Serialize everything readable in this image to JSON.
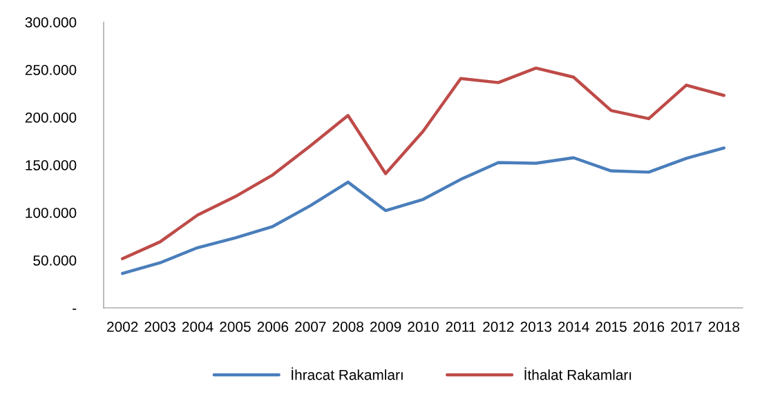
{
  "chart_data": {
    "type": "line",
    "categories": [
      "2002",
      "2003",
      "2004",
      "2005",
      "2006",
      "2007",
      "2008",
      "2009",
      "2010",
      "2011",
      "2012",
      "2013",
      "2014",
      "2015",
      "2016",
      "2017",
      "2018"
    ],
    "series": [
      {
        "name": "İhracat Rakamları",
        "color": "#4a7ebb",
        "values": [
          36100,
          47300,
          63200,
          73500,
          85500,
          107300,
          132000,
          102100,
          113900,
          134900,
          152500,
          151800,
          157600,
          143800,
          142500,
          157000,
          167900
        ]
      },
      {
        "name": "İthalat Rakamları",
        "color": "#be4b48",
        "values": [
          51600,
          69300,
          97500,
          116800,
          139600,
          170100,
          202000,
          140900,
          185500,
          240800,
          236500,
          251700,
          242200,
          207200,
          198600,
          233800,
          223000
        ]
      }
    ],
    "ylim": [
      0,
      300000
    ],
    "yticks": [
      {
        "value": 0,
        "label": "-"
      },
      {
        "value": 50000,
        "label": "50.000"
      },
      {
        "value": 100000,
        "label": "100.000"
      },
      {
        "value": 150000,
        "label": "150.000"
      },
      {
        "value": 200000,
        "label": "200.000"
      },
      {
        "value": 250000,
        "label": "250.000"
      },
      {
        "value": 300000,
        "label": "300.000"
      }
    ],
    "legend": "bottom",
    "grid": false,
    "marker": "none",
    "line_style": "solid"
  }
}
